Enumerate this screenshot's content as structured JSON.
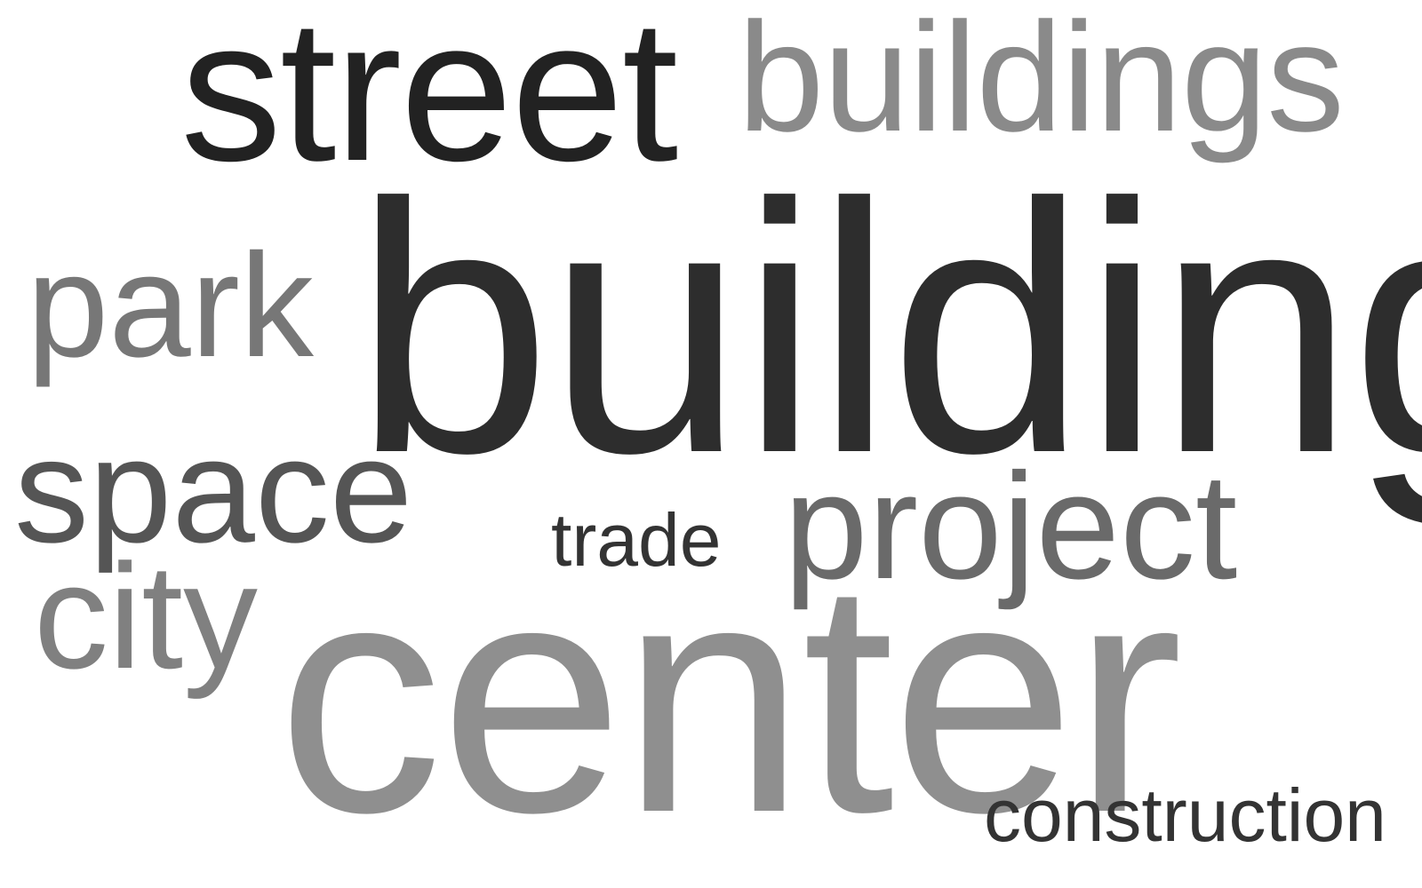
{
  "words": [
    {
      "text": "street",
      "color": "#222222"
    },
    {
      "text": "buildings",
      "color": "#8a8a8a"
    },
    {
      "text": "park",
      "color": "#777777"
    },
    {
      "text": "building",
      "color": "#2d2d2d"
    },
    {
      "text": "space",
      "color": "#555555"
    },
    {
      "text": "trade",
      "color": "#333333"
    },
    {
      "text": "project",
      "color": "#6a6a6a"
    },
    {
      "text": "city",
      "color": "#808080"
    },
    {
      "text": "center",
      "color": "#8f8f8f"
    },
    {
      "text": "construction",
      "color": "#333333"
    }
  ]
}
